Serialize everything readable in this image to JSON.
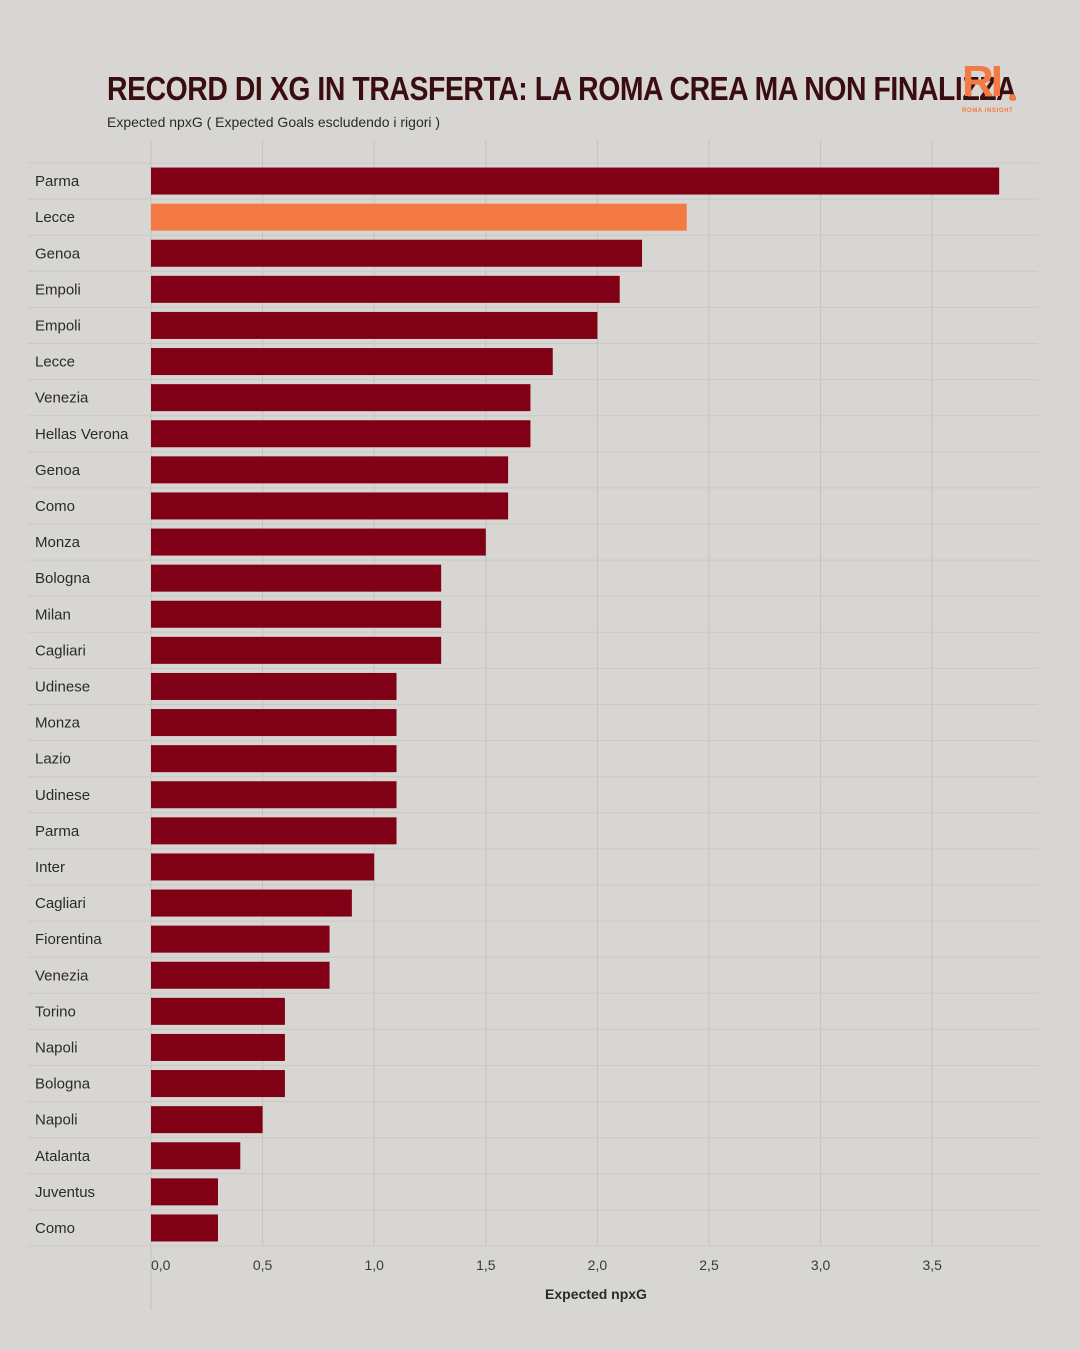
{
  "header": {
    "title": "Record di xG in trasferta: la Roma crea ma non finalizza",
    "subtitle": "Expected npxG ( Expected Goals escludendo i rigori )"
  },
  "logo": {
    "mark": "RI",
    "tagline": "ROMA INSIGHT"
  },
  "colors": {
    "background": "#d8d6d2",
    "bar": "#800016",
    "highlight": "#f47a43",
    "title": "#3a0d10"
  },
  "chart_data": {
    "type": "bar",
    "orientation": "horizontal",
    "xlabel": "Expected npxG",
    "xlim": [
      0,
      3.8
    ],
    "xticks": [
      0.0,
      0.5,
      1.0,
      1.5,
      2.0,
      2.5,
      3.0,
      3.5
    ],
    "xtick_labels": [
      "0,0",
      "0,5",
      "1,0",
      "1,5",
      "2,0",
      "2,5",
      "3,0",
      "3,5"
    ],
    "grid": true,
    "highlight_index": 1,
    "categories": [
      "Parma",
      "Lecce",
      "Genoa",
      "Empoli",
      "Empoli",
      "Lecce",
      "Venezia",
      "Hellas Verona",
      "Genoa",
      "Como",
      "Monza",
      "Bologna",
      "Milan",
      "Cagliari",
      "Udinese",
      "Monza",
      "Lazio",
      "Udinese",
      "Parma",
      "Inter",
      "Cagliari",
      "Fiorentina",
      "Venezia",
      "Torino",
      "Napoli",
      "Bologna",
      "Napoli",
      "Atalanta",
      "Juventus",
      "Como"
    ],
    "values": [
      3.8,
      2.4,
      2.2,
      2.1,
      2.0,
      1.8,
      1.7,
      1.7,
      1.6,
      1.6,
      1.5,
      1.3,
      1.3,
      1.3,
      1.1,
      1.1,
      1.1,
      1.1,
      1.1,
      1.0,
      0.9,
      0.8,
      0.8,
      0.6,
      0.6,
      0.6,
      0.5,
      0.4,
      0.3,
      0.3
    ]
  }
}
